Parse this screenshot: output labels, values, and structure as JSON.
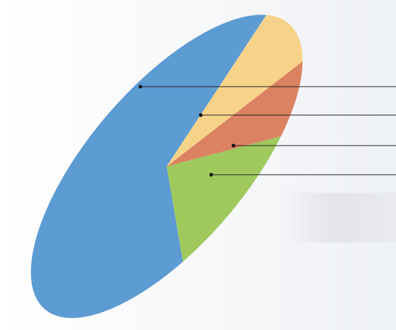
{
  "chart_data": {
    "type": "pie",
    "title": "",
    "legend": "none",
    "slices": [
      {
        "name": "",
        "value": 65,
        "color": "#5d9bd3"
      },
      {
        "name": "",
        "value": 14,
        "color": "#9fc95d"
      },
      {
        "name": "",
        "value": 9,
        "color": "#db8262"
      },
      {
        "name": "",
        "value": 12,
        "color": "#f7d38a"
      }
    ]
  }
}
